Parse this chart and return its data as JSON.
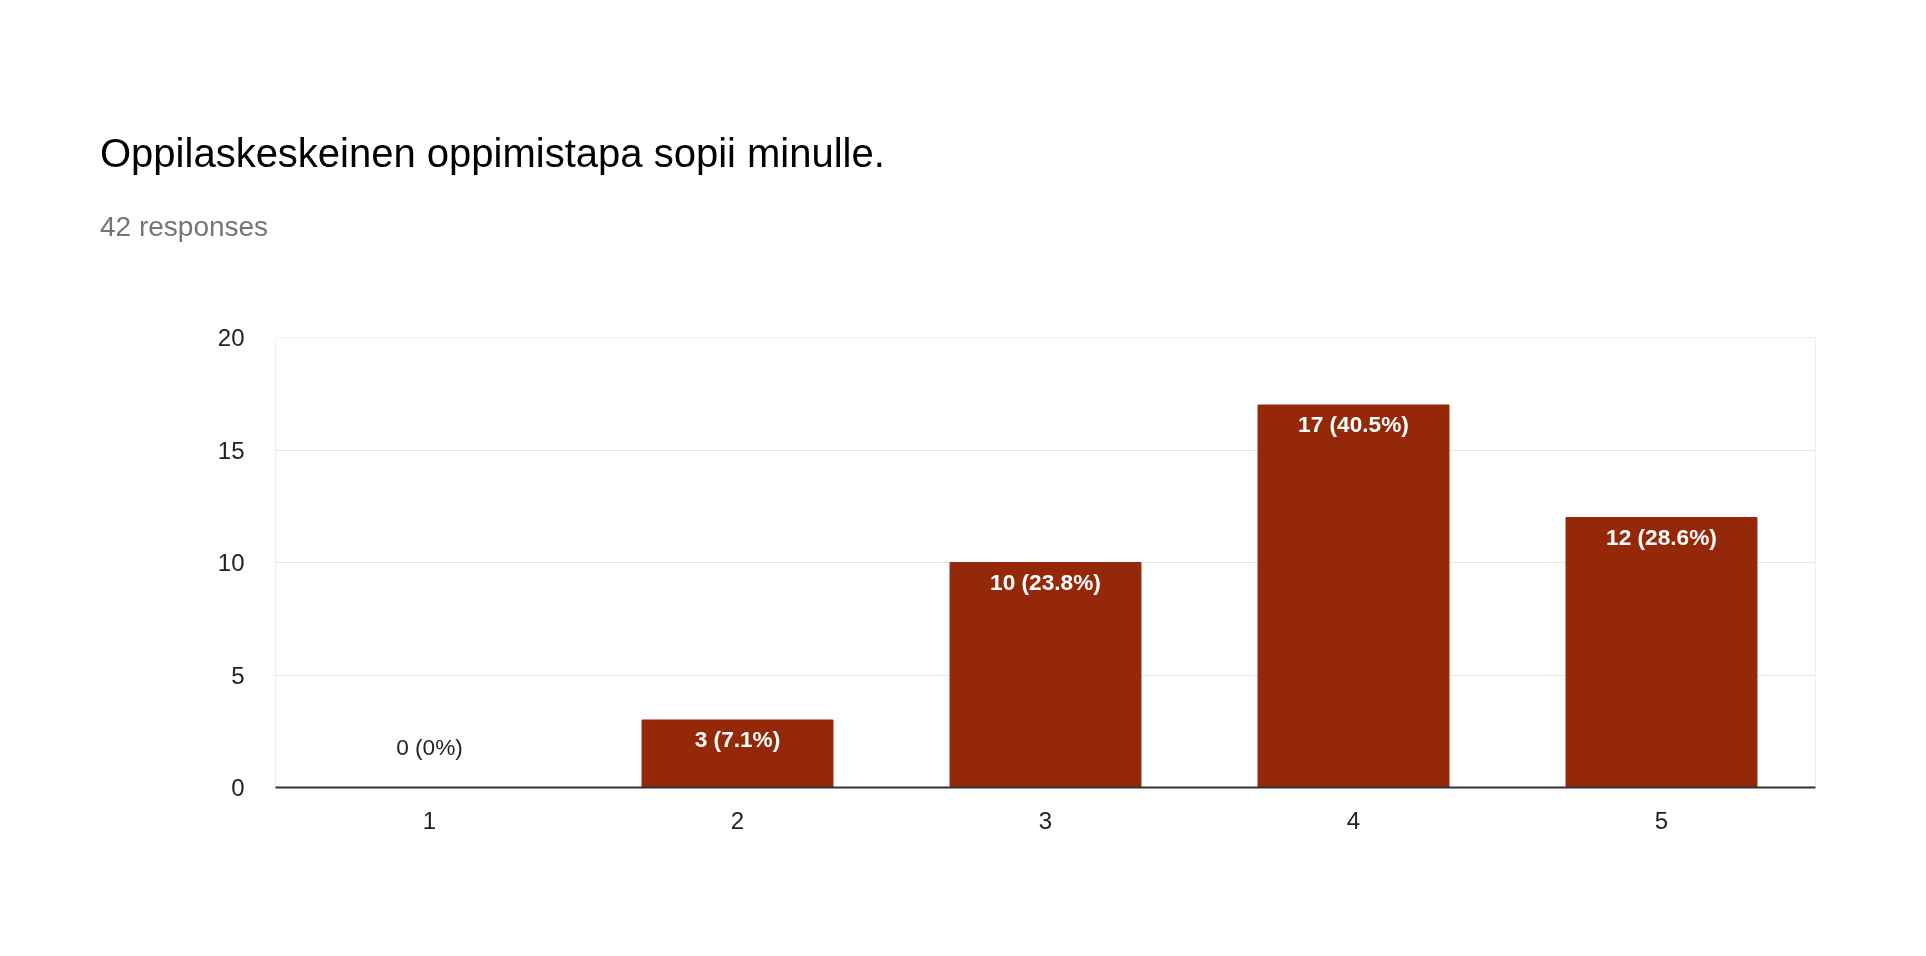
{
  "chart_data": {
    "type": "bar",
    "title": "Oppilaskeskeinen oppimistapa sopii minulle.",
    "subtitle": "42 responses",
    "categories": [
      "1",
      "2",
      "3",
      "4",
      "5"
    ],
    "values": [
      0,
      3,
      10,
      17,
      12
    ],
    "value_labels": [
      "0 (0%)",
      "3 (7.1%)",
      "10 (23.8%)",
      "17 (40.5%)",
      "12 (28.6%)"
    ],
    "color": "#952809",
    "ylim": [
      0,
      20
    ],
    "yticks": [
      0,
      5,
      10,
      15,
      20
    ],
    "grid": "y"
  }
}
